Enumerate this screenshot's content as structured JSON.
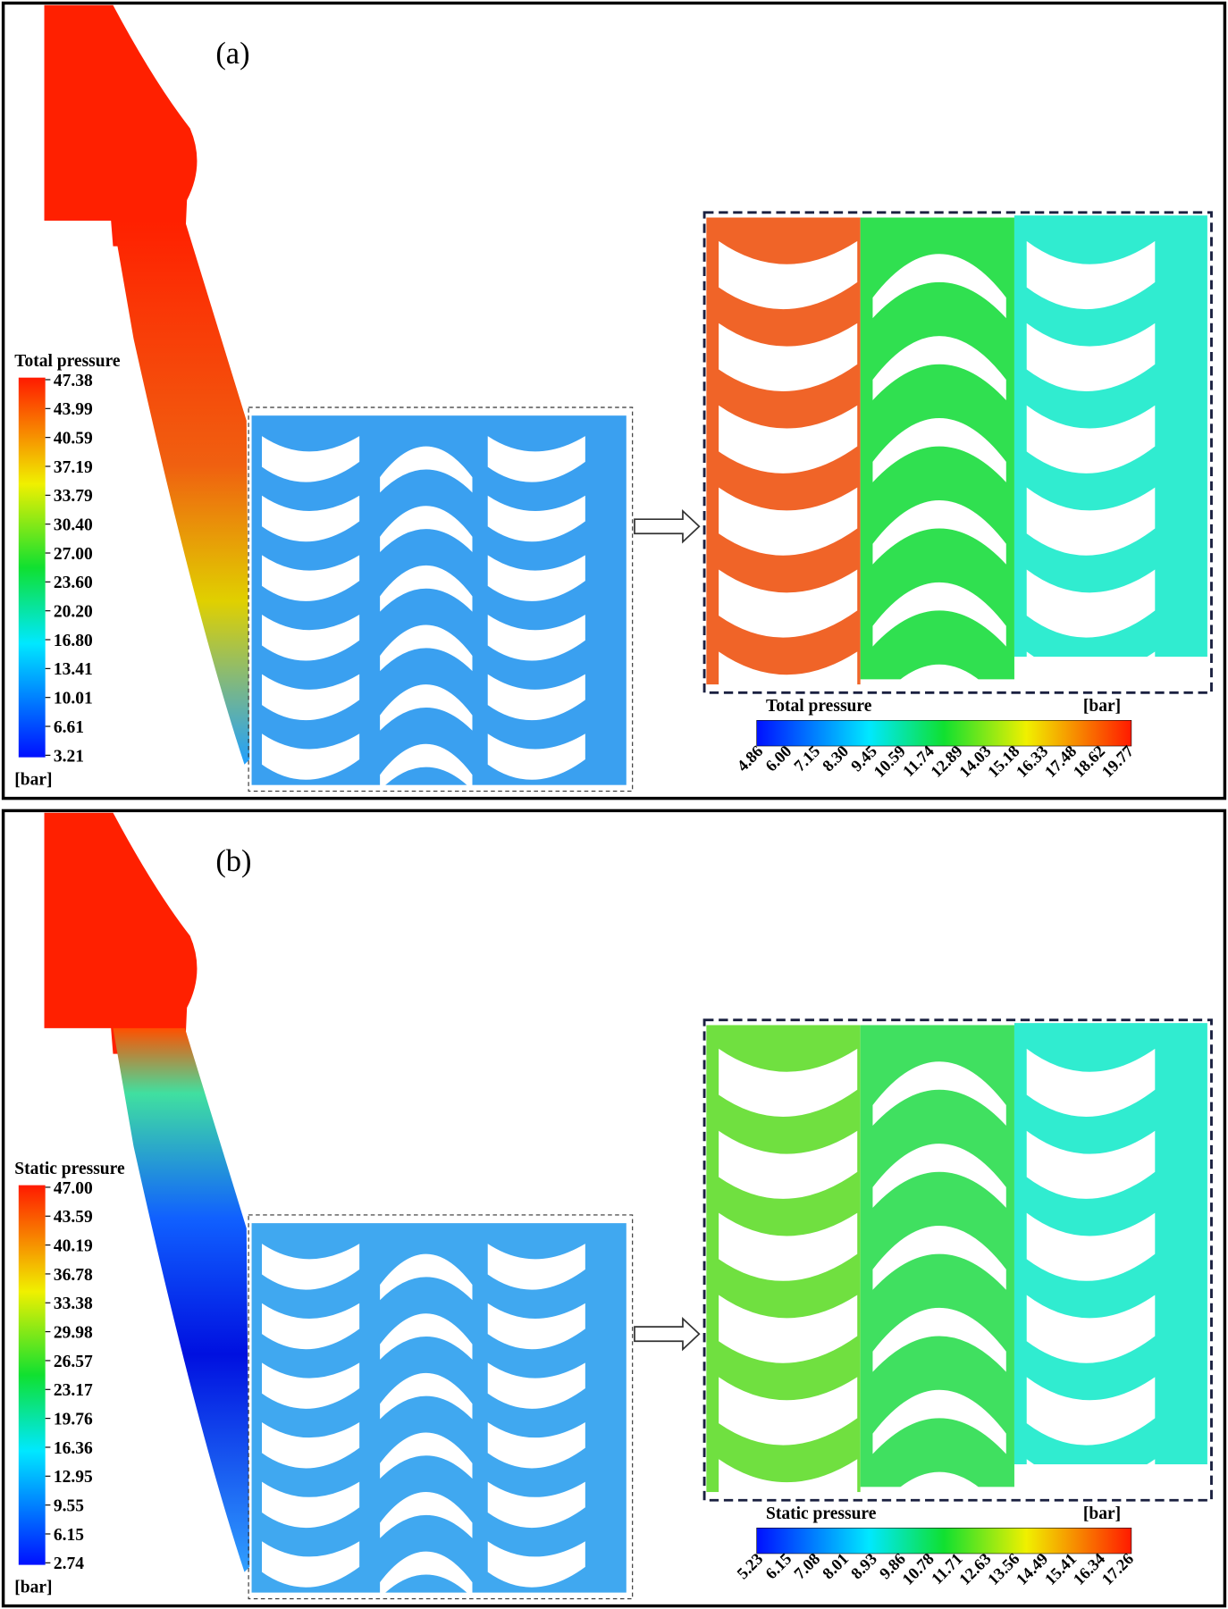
{
  "panels": [
    {
      "label": "(a)",
      "left_legend": {
        "title": "Total pressure",
        "unit": "[bar]",
        "ticks": [
          "47.38",
          "43.99",
          "40.59",
          "37.19",
          "33.79",
          "30.40",
          "27.00",
          "23.60",
          "20.20",
          "16.80",
          "13.41",
          "10.01",
          "6.61",
          "3.21"
        ]
      },
      "zoom_legend": {
        "title": "Total pressure",
        "unit": "[bar]",
        "ticks": [
          "4.86",
          "6.00",
          "7.15",
          "8.30",
          "9.45",
          "10.59",
          "11.74",
          "12.89",
          "14.03",
          "15.18",
          "16.33",
          "17.48",
          "18.62",
          "19.77"
        ]
      }
    },
    {
      "label": "(b)",
      "left_legend": {
        "title": "Static  pressure",
        "unit": "[bar]",
        "ticks": [
          "47.00",
          "43.59",
          "40.19",
          "36.78",
          "33.38",
          "29.98",
          "26.57",
          "23.17",
          "19.76",
          "16.36",
          "12.95",
          "9.55",
          "6.15",
          "2.74"
        ]
      },
      "zoom_legend": {
        "title": "Static pressure",
        "unit": "[bar]",
        "ticks": [
          "5.23",
          "6.15",
          "7.08",
          "8.01",
          "8.93",
          "9.86",
          "10.78",
          "11.71",
          "12.63",
          "13.56",
          "14.49",
          "15.41",
          "16.34",
          "17.26"
        ]
      }
    }
  ]
}
